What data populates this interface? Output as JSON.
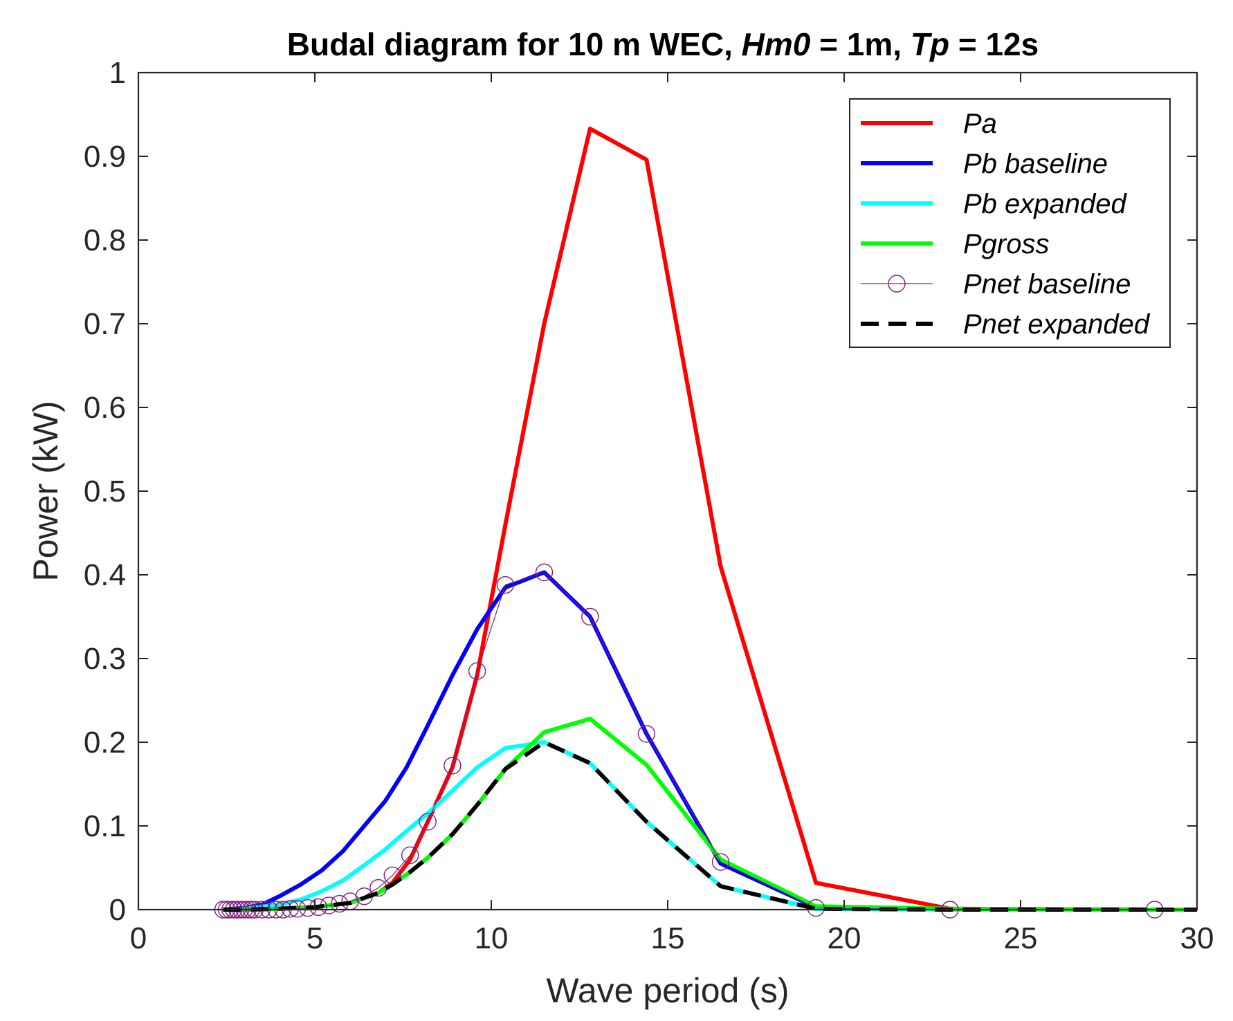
{
  "chart_data": {
    "type": "line",
    "title_parts": [
      "Budal diagram for 10 m WEC,  ",
      "Hm0",
      " = 1m,  ",
      "Tp",
      " = 12s"
    ],
    "xlabel": "Wave period (s)",
    "ylabel": "Power (kW)",
    "xlim": [
      0,
      30
    ],
    "ylim": [
      0,
      1
    ],
    "xticks": [
      0,
      5,
      10,
      15,
      20,
      25,
      30
    ],
    "xtick_labels": [
      "0",
      "5",
      "10",
      "15",
      "20",
      "25",
      "30"
    ],
    "yticks": [
      0,
      0.1,
      0.2,
      0.3,
      0.4,
      0.5,
      0.6,
      0.7,
      0.8,
      0.9,
      1
    ],
    "ytick_labels": [
      "0",
      "0.1",
      "0.2",
      "0.3",
      "0.4",
      "0.5",
      "0.6",
      "0.7",
      "0.8",
      "0.9",
      "1"
    ],
    "grid": false,
    "legend_position": "top-right",
    "series": [
      {
        "name": "Pa",
        "color": "#ff0000",
        "style": "solid",
        "x": [
          2.4,
          3.0,
          4.0,
          5.0,
          6.0,
          6.8,
          7.2,
          7.7,
          8.2,
          8.9,
          9.6,
          10.4,
          11.5,
          12.8,
          14.4,
          16.5,
          19.2,
          23.0,
          28.8,
          30.0
        ],
        "y": [
          0,
          0,
          0.001,
          0.003,
          0.008,
          0.02,
          0.032,
          0.06,
          0.105,
          0.17,
          0.28,
          0.46,
          0.7,
          0.933,
          0.896,
          0.41,
          0.032,
          0.001,
          0,
          0
        ]
      },
      {
        "name": "Pb baseline",
        "color": "#0000ff",
        "style": "solid",
        "x": [
          2.4,
          3.0,
          3.5,
          4.0,
          4.6,
          5.2,
          5.8,
          6.4,
          7.0,
          7.6,
          8.2,
          8.9,
          9.6,
          10.4,
          11.5,
          12.8,
          14.4,
          16.5,
          19.2,
          23.0,
          28.8,
          30.0
        ],
        "y": [
          0,
          0.002,
          0.006,
          0.016,
          0.03,
          0.047,
          0.07,
          0.1,
          0.13,
          0.17,
          0.22,
          0.28,
          0.335,
          0.385,
          0.403,
          0.35,
          0.21,
          0.055,
          0.003,
          0,
          0,
          0
        ]
      },
      {
        "name": "Pb expanded",
        "color": "#00ffff",
        "style": "solid",
        "x": [
          2.4,
          3.0,
          4.0,
          4.6,
          5.2,
          5.8,
          6.4,
          7.0,
          7.6,
          8.2,
          8.9,
          9.6,
          10.4,
          11.5,
          12.8,
          14.4,
          16.5,
          19.2,
          23.0,
          28.8,
          30.0
        ],
        "y": [
          0,
          0.001,
          0.006,
          0.012,
          0.022,
          0.035,
          0.053,
          0.072,
          0.094,
          0.115,
          0.142,
          0.17,
          0.193,
          0.2,
          0.175,
          0.105,
          0.028,
          0.001,
          0,
          0,
          0
        ]
      },
      {
        "name": "Pgross",
        "color": "#00ff00",
        "style": "solid",
        "x": [
          2.4,
          3.0,
          4.0,
          5.0,
          6.0,
          6.8,
          7.2,
          7.7,
          8.2,
          8.9,
          9.6,
          10.4,
          11.5,
          12.8,
          14.4,
          16.5,
          19.2,
          23.0,
          28.8,
          30.0
        ],
        "y": [
          0,
          0,
          0.001,
          0.003,
          0.008,
          0.02,
          0.03,
          0.045,
          0.062,
          0.09,
          0.125,
          0.168,
          0.212,
          0.228,
          0.173,
          0.06,
          0.004,
          0.001,
          0,
          0
        ]
      },
      {
        "name": "Pnet baseline",
        "color": "#7e1e80",
        "style": "circles",
        "x": [
          2.4,
          2.5,
          2.6,
          2.7,
          2.8,
          2.9,
          3.0,
          3.1,
          3.2,
          3.3,
          3.5,
          3.7,
          3.9,
          4.1,
          4.3,
          4.5,
          4.8,
          5.1,
          5.4,
          5.7,
          6.0,
          6.4,
          6.8,
          7.2,
          7.7,
          8.2,
          8.9,
          9.6,
          10.4,
          11.5,
          12.8,
          14.4,
          16.5,
          19.2,
          23.0,
          28.8
        ],
        "y": [
          0,
          0,
          0,
          0,
          0,
          0,
          0,
          0,
          0,
          0,
          0,
          0,
          0,
          0,
          0.001,
          0.001,
          0.002,
          0.003,
          0.005,
          0.007,
          0.01,
          0.016,
          0.026,
          0.041,
          0.065,
          0.105,
          0.172,
          0.285,
          0.388,
          0.403,
          0.35,
          0.21,
          0.057,
          0.002,
          0,
          0
        ]
      },
      {
        "name": "Pnet expanded",
        "color": "#000000",
        "style": "dashed",
        "x": [
          2.4,
          3.0,
          4.0,
          5.0,
          6.0,
          6.8,
          7.2,
          7.7,
          8.2,
          8.9,
          9.6,
          10.4,
          11.5,
          12.8,
          14.4,
          16.5,
          19.2,
          23.0,
          28.8,
          30.0
        ],
        "y": [
          0,
          0,
          0.001,
          0.003,
          0.008,
          0.02,
          0.03,
          0.045,
          0.062,
          0.09,
          0.125,
          0.168,
          0.2,
          0.175,
          0.105,
          0.028,
          0.001,
          0,
          0,
          0
        ]
      }
    ]
  }
}
